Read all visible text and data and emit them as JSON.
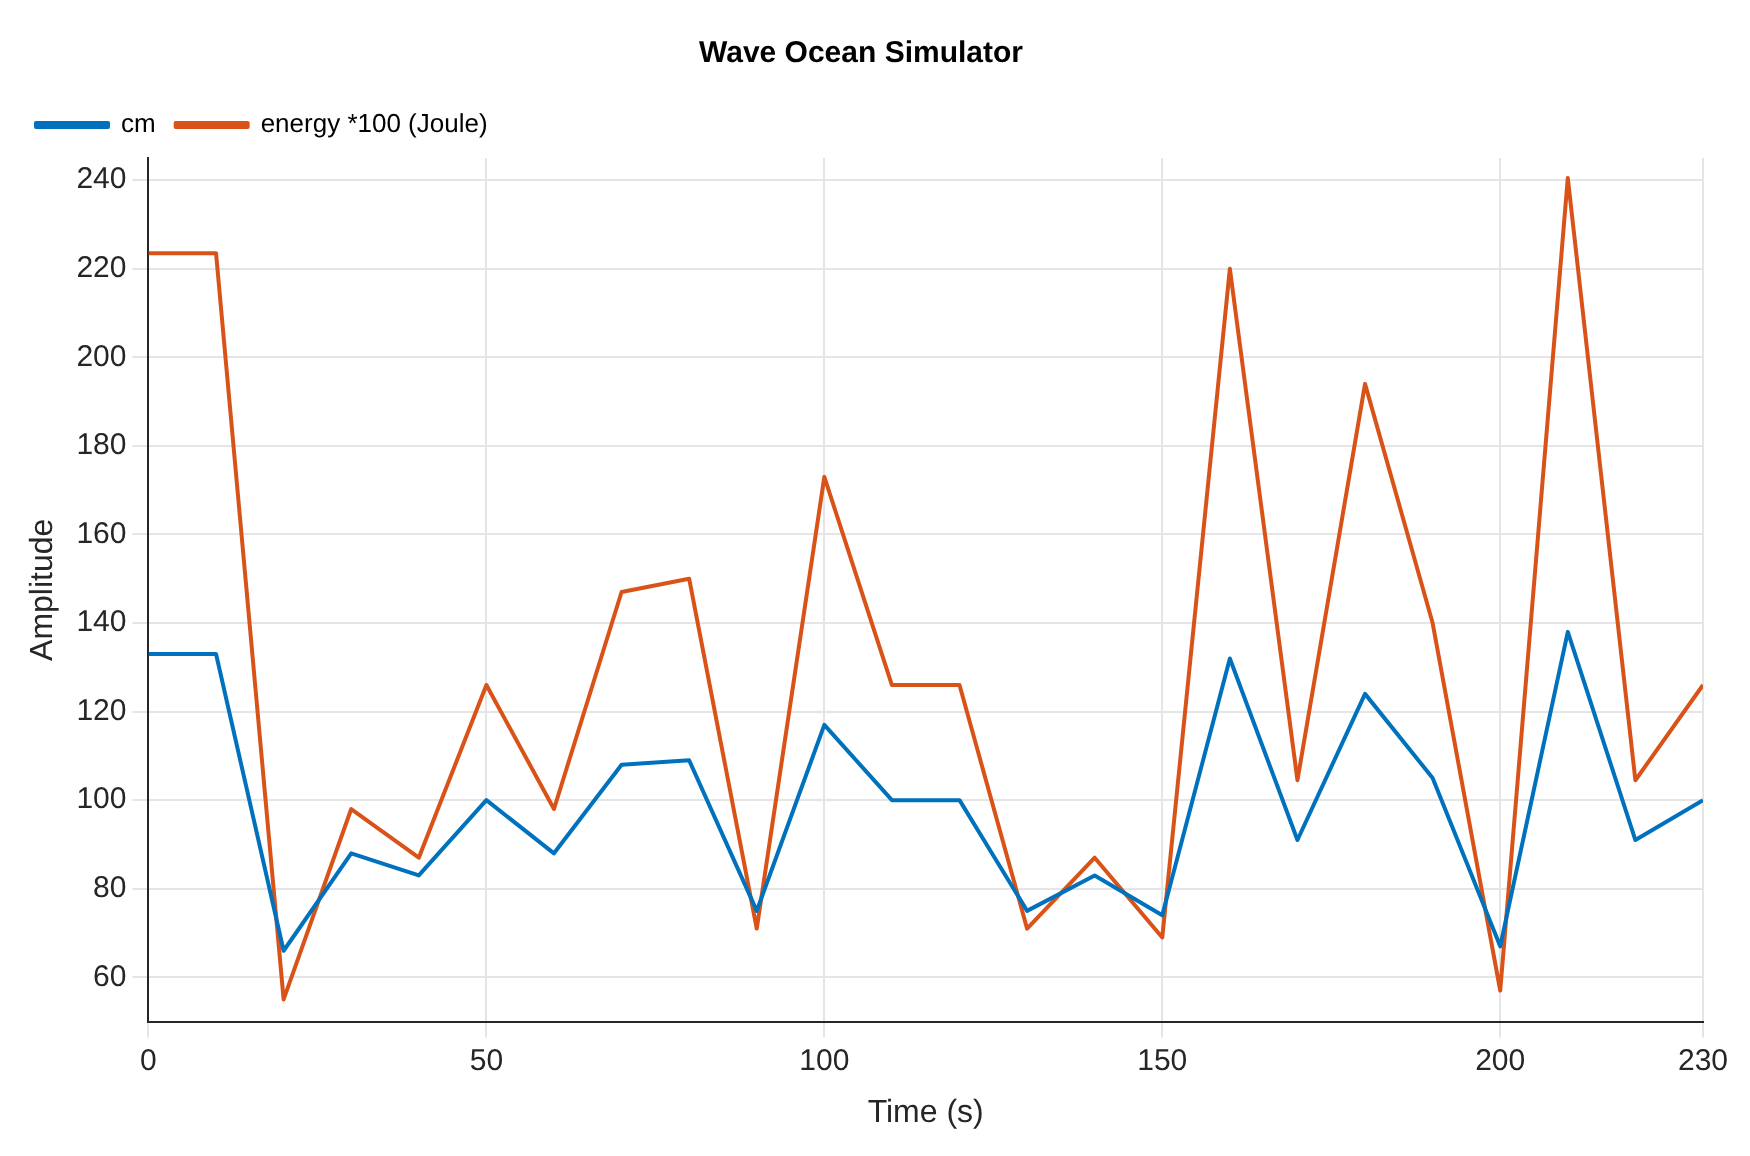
{
  "chart_data": {
    "type": "line",
    "title": "Wave Ocean Simulator",
    "xlabel": "Time (s)",
    "ylabel": "Amplitude",
    "x": [
      0,
      10,
      20,
      30,
      40,
      50,
      60,
      70,
      80,
      90,
      100,
      110,
      120,
      130,
      140,
      150,
      160,
      170,
      180,
      190,
      200,
      210,
      220,
      230
    ],
    "series": [
      {
        "name": "cm",
        "color": "#0072bd",
        "values": [
          133,
          133,
          66,
          88,
          83,
          100,
          88,
          108,
          109,
          75,
          117,
          100,
          100,
          75,
          83,
          74,
          132,
          91,
          124,
          105,
          67,
          138,
          91,
          100
        ]
      },
      {
        "name": "energy *100 (Joule)",
        "color": "#d95319",
        "values": [
          223.5,
          223.5,
          55,
          98,
          87,
          126,
          98,
          147,
          150,
          71,
          173,
          126,
          126,
          71,
          87,
          69,
          220,
          104.5,
          194,
          140,
          57,
          240.5,
          104.5,
          126
        ]
      }
    ],
    "xlim": [
      0,
      230
    ],
    "xticks": [
      0,
      50,
      100,
      150,
      200,
      230
    ],
    "ylim": [
      50,
      245
    ],
    "yticks": [
      60,
      80,
      100,
      120,
      140,
      160,
      180,
      200,
      220,
      240
    ],
    "grid": true,
    "legend": "top left",
    "marker": "none",
    "line_style": "solid"
  }
}
